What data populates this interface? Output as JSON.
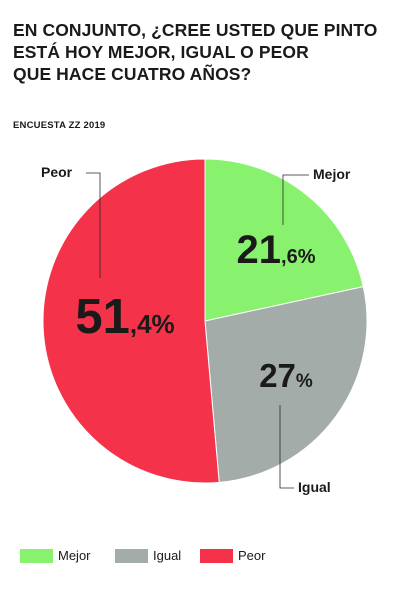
{
  "title_lines": [
    "EN CONJUNTO, ¿CREE USTED QUE PINTO",
    "ESTÁ HOY MEJOR, IGUAL O PEOR",
    "QUE HACE CUATRO AÑOS?"
  ],
  "source": "ENCUESTA ZZ 2019",
  "colors": {
    "mejor": "#88f26e",
    "igual": "#a3aca8",
    "peor": "#f4334a",
    "text": "#1a1a1a"
  },
  "chart_data": {
    "type": "pie",
    "title": "EN CONJUNTO, ¿CREE USTED QUE PINTO ESTÁ HOY MEJOR, IGUAL O PEOR QUE HACE CUATRO AÑOS?",
    "categories": [
      "Mejor",
      "Igual",
      "Peor"
    ],
    "values": [
      21.6,
      27,
      51.4
    ],
    "value_labels": [
      {
        "main": "21",
        "suffix": ",6%"
      },
      {
        "main": "27",
        "suffix": "%"
      },
      {
        "main": "51",
        "suffix": ",4%"
      }
    ],
    "unit": "%",
    "legend_position": "bottom"
  },
  "legend": [
    {
      "label": "Mejor",
      "color": "#88f26e"
    },
    {
      "label": "Igual",
      "color": "#a3aca8"
    },
    {
      "label": "Peor",
      "color": "#f4334a"
    }
  ]
}
